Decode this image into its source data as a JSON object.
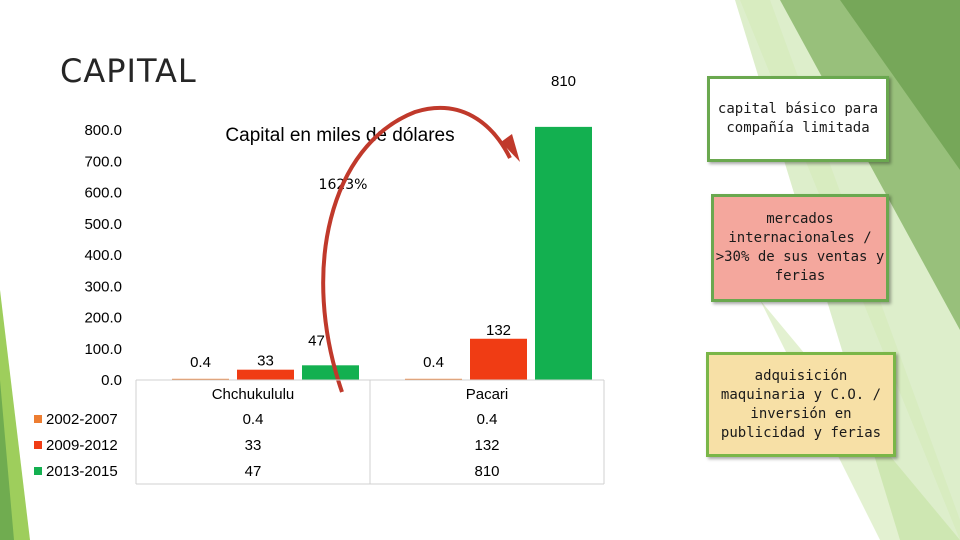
{
  "slide": {
    "title": "CAPITAL"
  },
  "chart_data": {
    "type": "bar",
    "title": "Capital en miles de dólares",
    "categories": [
      "Chchukululu",
      "Pacari"
    ],
    "series": [
      {
        "name": "2002-2007",
        "values": [
          0.4,
          0.4
        ],
        "labels": [
          "0.4",
          "0.4"
        ],
        "color": "#ed7d31"
      },
      {
        "name": "2009-2012",
        "values": [
          33,
          132
        ],
        "labels": [
          "33",
          "132"
        ],
        "color": "#f03c14"
      },
      {
        "name": "2013-2015",
        "values": [
          47,
          810
        ],
        "labels": [
          "47",
          "810"
        ],
        "color": "#13b050"
      }
    ],
    "y_ticks": [
      "800.0",
      "700.0",
      "600.0",
      "500.0",
      "400.0",
      "300.0",
      "200.0",
      "100.0",
      "0.0"
    ],
    "ylim": [
      0,
      800
    ],
    "grid": false,
    "legend": "data-table",
    "annotation": "1623%",
    "arrow_color": "#c0392b"
  },
  "callouts": [
    {
      "text": "capital básico para compañía limitada"
    },
    {
      "text": "mercados internacionales / >30% de sus ventas y ferias"
    },
    {
      "text": "adquisición maquinaria y C.O. / inversión en publicidad y ferias"
    }
  ]
}
